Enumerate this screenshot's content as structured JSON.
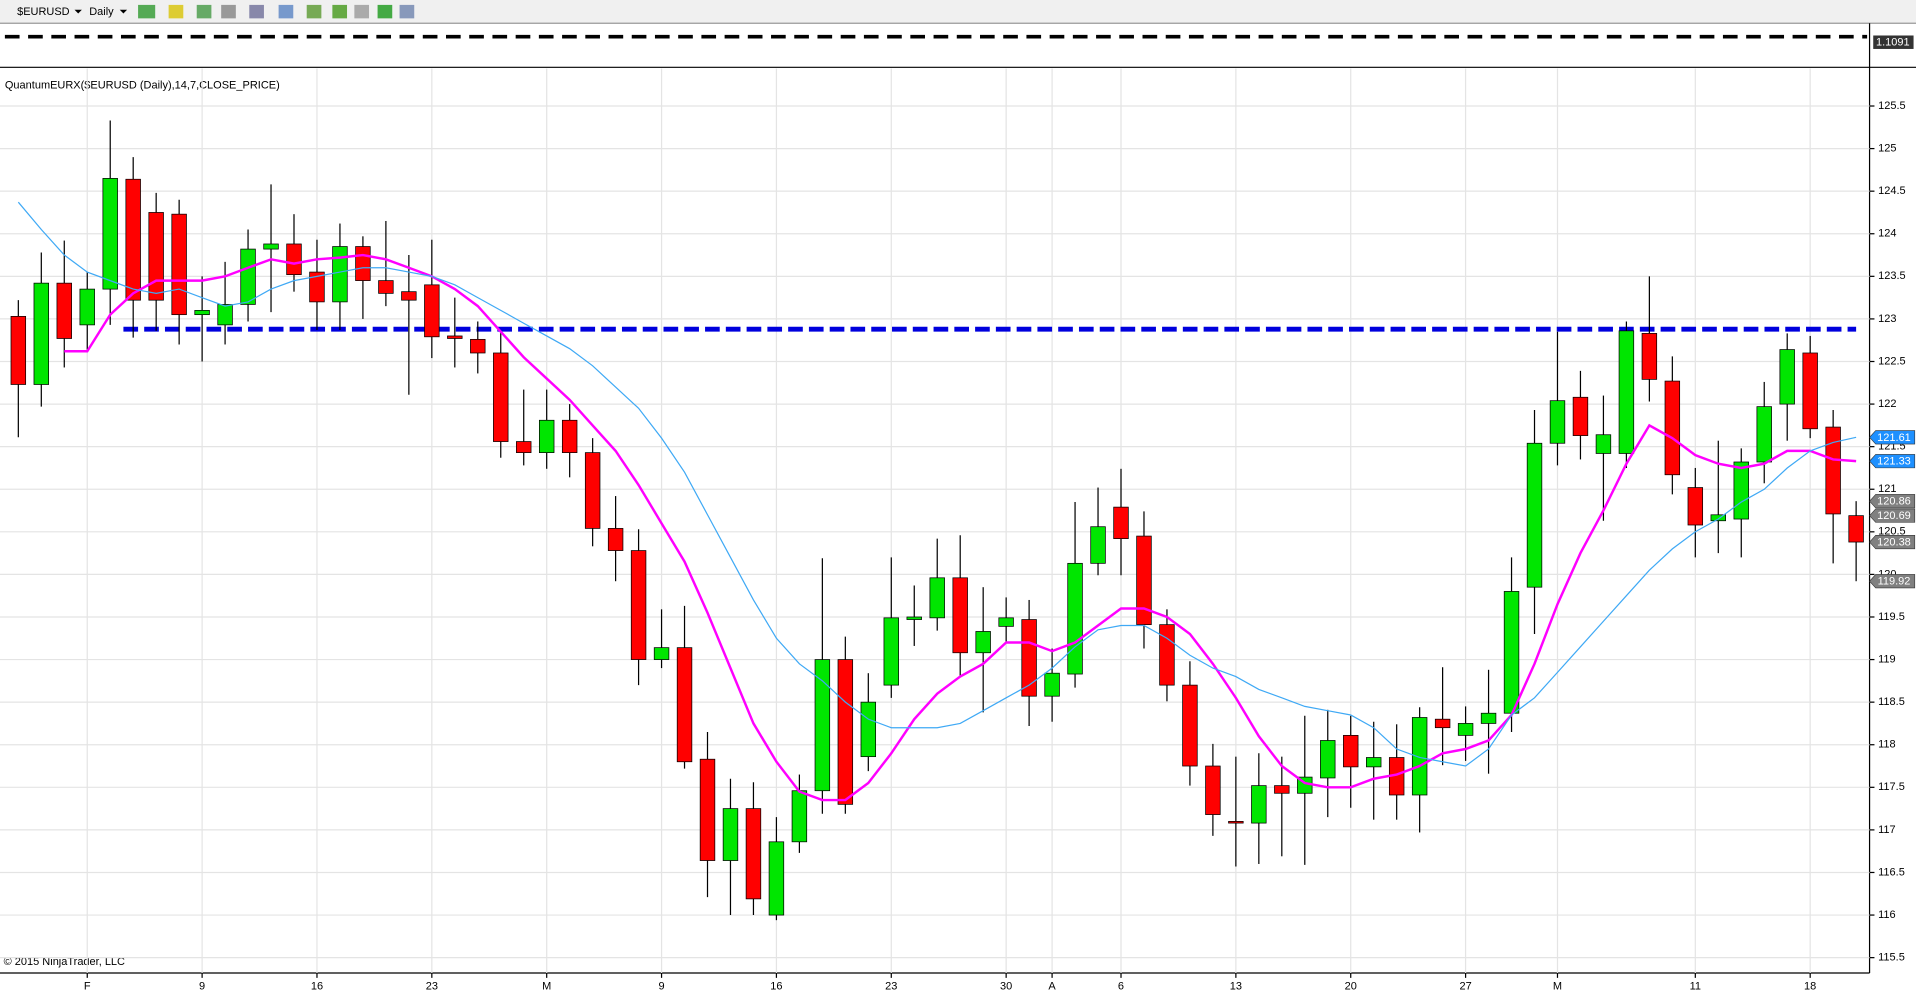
{
  "toolbar": {
    "symbol": "$EURUSD",
    "period": "Daily"
  },
  "chart_data": {
    "type": "candlestick",
    "title": "QuantumEURX($EURUSD (Daily),14,7,CLOSE_PRICE)",
    "copyright": "© 2015 NinjaTrader, LLC",
    "top_panel_label": "1.1091",
    "categories": [
      null,
      null,
      null,
      "F",
      null,
      null,
      null,
      null,
      "9",
      null,
      null,
      null,
      null,
      "16",
      null,
      null,
      null,
      null,
      "23",
      null,
      null,
      null,
      null,
      "M",
      null,
      null,
      null,
      null,
      "9",
      null,
      null,
      null,
      null,
      "16",
      null,
      null,
      null,
      null,
      "23",
      null,
      null,
      null,
      null,
      "30",
      null,
      "A",
      null,
      null,
      "6",
      null,
      null,
      null,
      null,
      "13",
      null,
      null,
      null,
      null,
      "20",
      null,
      null,
      null,
      null,
      "27",
      null,
      null,
      null,
      "M",
      null,
      null,
      null,
      null,
      null,
      "11",
      null,
      null,
      null,
      null,
      "18",
      null,
      null
    ],
    "open": [
      123.03,
      122.23,
      123.42,
      122.93,
      123.35,
      124.64,
      124.25,
      124.23,
      123.05,
      122.93,
      123.17,
      123.82,
      123.88,
      123.55,
      123.2,
      123.85,
      123.45,
      123.32,
      123.4,
      122.8,
      122.76,
      122.6,
      121.56,
      121.43,
      121.81,
      121.43,
      120.54,
      120.28,
      119.0,
      119.14,
      117.83,
      116.64,
      117.25,
      116.0,
      116.86,
      117.46,
      119.0,
      117.86,
      118.7,
      119.47,
      119.49,
      119.96,
      119.08,
      119.39,
      119.47,
      118.57,
      118.83,
      120.13,
      120.79,
      120.45,
      119.41,
      118.7,
      117.75,
      117.1,
      117.08,
      117.52,
      117.43,
      117.61,
      118.11,
      117.74,
      117.85,
      117.41,
      118.3,
      118.11,
      118.25,
      118.37,
      119.85,
      121.54,
      122.08,
      121.42,
      121.42,
      122.83,
      122.27,
      121.02,
      120.63,
      120.65,
      121.32,
      122.0,
      122.6,
      121.73,
      120.69
    ],
    "high": [
      123.22,
      123.78,
      123.92,
      123.55,
      125.33,
      124.9,
      124.48,
      124.4,
      123.5,
      123.67,
      124.05,
      124.58,
      124.23,
      123.93,
      124.12,
      123.97,
      124.15,
      123.75,
      123.93,
      123.25,
      122.97,
      122.86,
      122.17,
      122.17,
      122.0,
      121.6,
      120.92,
      120.53,
      119.59,
      119.63,
      118.15,
      117.6,
      117.56,
      117.15,
      117.65,
      120.19,
      119.27,
      118.84,
      120.2,
      119.87,
      120.42,
      120.46,
      119.85,
      119.73,
      119.7,
      119.13,
      120.85,
      121.02,
      121.24,
      120.74,
      119.59,
      118.98,
      118.01,
      117.86,
      117.9,
      117.86,
      118.34,
      118.41,
      118.34,
      118.27,
      118.24,
      118.44,
      118.91,
      118.45,
      118.88,
      120.2,
      121.93,
      122.85,
      122.39,
      122.1,
      122.97,
      123.5,
      122.56,
      121.25,
      121.57,
      121.48,
      122.26,
      122.83,
      122.8,
      121.93,
      120.86
    ],
    "low": [
      121.61,
      121.97,
      122.43,
      122.64,
      122.93,
      122.78,
      122.86,
      122.7,
      122.5,
      122.7,
      122.97,
      123.08,
      123.32,
      122.87,
      122.87,
      123.0,
      123.15,
      122.11,
      122.54,
      122.43,
      122.36,
      121.37,
      121.28,
      121.24,
      121.14,
      120.33,
      119.92,
      118.7,
      118.9,
      117.72,
      116.21,
      116.0,
      116.0,
      115.94,
      116.73,
      117.19,
      117.19,
      117.69,
      118.55,
      119.16,
      119.34,
      118.81,
      118.38,
      119.19,
      118.22,
      118.27,
      118.67,
      119.99,
      119.99,
      119.13,
      118.51,
      117.52,
      116.93,
      116.57,
      116.6,
      116.69,
      116.59,
      117.15,
      117.26,
      117.12,
      117.12,
      116.97,
      117.76,
      117.81,
      117.66,
      118.15,
      119.3,
      121.28,
      121.35,
      120.63,
      121.25,
      122.03,
      120.94,
      120.2,
      120.25,
      120.2,
      121.07,
      121.57,
      121.6,
      120.13,
      119.92
    ],
    "close": [
      122.23,
      123.42,
      122.77,
      123.35,
      124.65,
      123.22,
      123.22,
      123.05,
      123.1,
      123.17,
      123.82,
      123.88,
      123.52,
      123.2,
      123.85,
      123.45,
      123.3,
      123.22,
      122.79,
      122.77,
      122.6,
      121.56,
      121.43,
      121.81,
      121.43,
      120.54,
      120.28,
      119.0,
      119.14,
      117.8,
      116.64,
      117.25,
      116.19,
      116.86,
      117.46,
      119.0,
      117.3,
      118.5,
      119.49,
      119.5,
      119.96,
      119.08,
      119.33,
      119.49,
      118.57,
      118.84,
      120.13,
      120.56,
      120.42,
      119.41,
      118.7,
      117.75,
      117.18,
      117.08,
      117.52,
      117.43,
      117.62,
      118.05,
      117.74,
      117.85,
      117.41,
      118.32,
      118.2,
      118.25,
      118.37,
      119.8,
      121.54,
      122.04,
      121.63,
      121.64,
      122.86,
      122.29,
      121.17,
      120.58,
      120.7,
      121.32,
      121.97,
      122.64,
      121.71,
      120.71,
      120.38
    ],
    "up_color": "#00e600",
    "down_color": "#ff0000",
    "lines": [
      {
        "color": "#ff00ff",
        "values": [
          null,
          null,
          122.62,
          122.62,
          123.05,
          123.3,
          123.45,
          123.45,
          123.45,
          123.5,
          123.6,
          123.7,
          123.65,
          123.7,
          123.72,
          123.75,
          123.7,
          123.6,
          123.5,
          123.35,
          123.15,
          122.85,
          122.55,
          122.3,
          122.05,
          121.75,
          121.45,
          121.05,
          120.6,
          120.15,
          119.55,
          118.9,
          118.25,
          117.8,
          117.45,
          117.35,
          117.35,
          117.55,
          117.9,
          118.3,
          118.6,
          118.8,
          118.95,
          119.2,
          119.2,
          119.1,
          119.2,
          119.4,
          119.6,
          119.6,
          119.5,
          119.3,
          118.95,
          118.55,
          118.1,
          117.75,
          117.55,
          117.5,
          117.5,
          117.6,
          117.65,
          117.75,
          117.9,
          117.95,
          118.05,
          118.35,
          118.95,
          119.65,
          120.25,
          120.75,
          121.3,
          121.75,
          121.6,
          121.4,
          121.3,
          121.25,
          121.3,
          121.45,
          121.45,
          121.35,
          121.33
        ]
      },
      {
        "color": "#3fa9f5",
        "values": [
          124.37,
          124.05,
          123.75,
          123.55,
          123.45,
          123.35,
          123.3,
          123.35,
          123.25,
          123.15,
          123.2,
          123.35,
          123.45,
          123.5,
          123.55,
          123.6,
          123.6,
          123.55,
          123.5,
          123.4,
          123.25,
          123.1,
          122.95,
          122.8,
          122.65,
          122.45,
          122.2,
          121.95,
          121.6,
          121.2,
          120.7,
          120.2,
          119.7,
          119.25,
          118.95,
          118.75,
          118.5,
          118.3,
          118.2,
          118.2,
          118.2,
          118.25,
          118.4,
          118.55,
          118.7,
          118.9,
          119.15,
          119.35,
          119.4,
          119.4,
          119.25,
          119.05,
          118.9,
          118.8,
          118.65,
          118.55,
          118.45,
          118.4,
          118.35,
          118.2,
          117.95,
          117.85,
          117.8,
          117.75,
          117.95,
          118.35,
          118.55,
          118.85,
          119.15,
          119.45,
          119.75,
          120.05,
          120.3,
          120.5,
          120.65,
          120.85,
          121.0,
          121.25,
          121.45,
          121.55,
          121.61
        ]
      }
    ],
    "resistance": {
      "value": 122.88,
      "start": 5,
      "color": "#0000dd"
    },
    "price_markers": [
      {
        "value": 121.61,
        "color": "#1e90ff"
      },
      {
        "value": 121.33,
        "color": "#1e90ff"
      },
      {
        "value": 120.86,
        "color": "#808080"
      },
      {
        "value": 120.69,
        "color": "#808080"
      },
      {
        "value": 120.38,
        "color": "#808080"
      },
      {
        "value": 119.92,
        "color": "#808080"
      }
    ],
    "ylim": [
      115.32,
      125.94
    ],
    "yticks": [
      115.5,
      116,
      116.5,
      117,
      117.5,
      118,
      118.5,
      119,
      119.5,
      120,
      120.5,
      121,
      121.5,
      122,
      122.5,
      123,
      123.5,
      124,
      124.5,
      125,
      125.5
    ],
    "grid": true
  }
}
